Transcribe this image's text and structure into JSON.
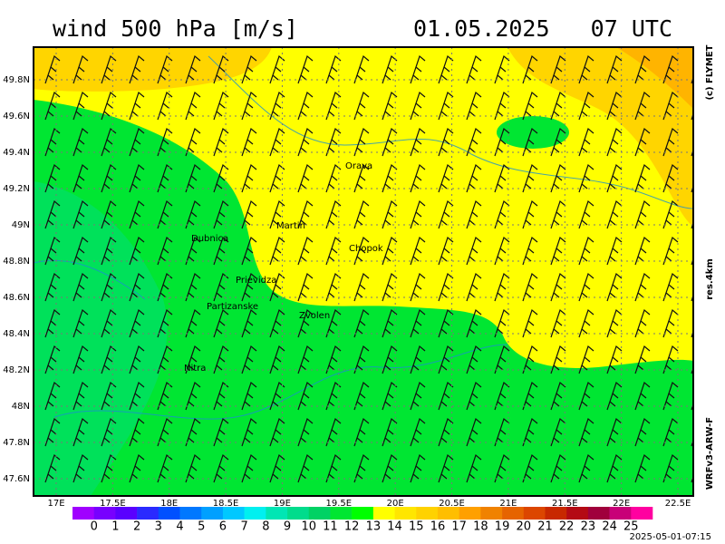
{
  "header": {
    "title": "wind 500 hPa [m/s]",
    "valid_time": "01.05.2025   07 UTC"
  },
  "side": {
    "credit": "(c) FLYMET",
    "resolution": "res.4km",
    "model": "WRFv3-ARW-F"
  },
  "footer": {
    "timestamp": "2025-05-01-07:15"
  },
  "map": {
    "lat_ticks": [
      "49.8N",
      "49.6N",
      "49.4N",
      "49.2N",
      "49N",
      "48.8N",
      "48.6N",
      "48.4N",
      "48.2N",
      "48N",
      "47.8N",
      "47.6N"
    ],
    "lon_ticks": [
      "17E",
      "17.5E",
      "18E",
      "18.5E",
      "19E",
      "19.5E",
      "20E",
      "20.5E",
      "21E",
      "21.5E",
      "22E",
      "22.5E"
    ],
    "places": [
      "Orava",
      "Martin",
      "Dubnica",
      "Chopok",
      "Prievidza",
      "Partizanske",
      "Zvolen",
      "Nitra"
    ]
  },
  "colorbar": {
    "labels": [
      0,
      1,
      2,
      3,
      4,
      5,
      6,
      7,
      8,
      9,
      10,
      11,
      12,
      13,
      14,
      15,
      16,
      17,
      18,
      19,
      20,
      21,
      22,
      23,
      24,
      25
    ],
    "colors": [
      "#a000ff",
      "#7800ff",
      "#5a00ff",
      "#2a2aff",
      "#0050ff",
      "#0078ff",
      "#00a0ff",
      "#00c8ff",
      "#00f0f0",
      "#00e6b4",
      "#00dc8c",
      "#00d264",
      "#00e632",
      "#00ff00",
      "#ffff00",
      "#ffe600",
      "#ffd200",
      "#ffbe00",
      "#ffa000",
      "#f08200",
      "#e66400",
      "#dc4600",
      "#c82800",
      "#b40a14",
      "#a0003c",
      "#c80078",
      "#ff00a0"
    ]
  }
}
